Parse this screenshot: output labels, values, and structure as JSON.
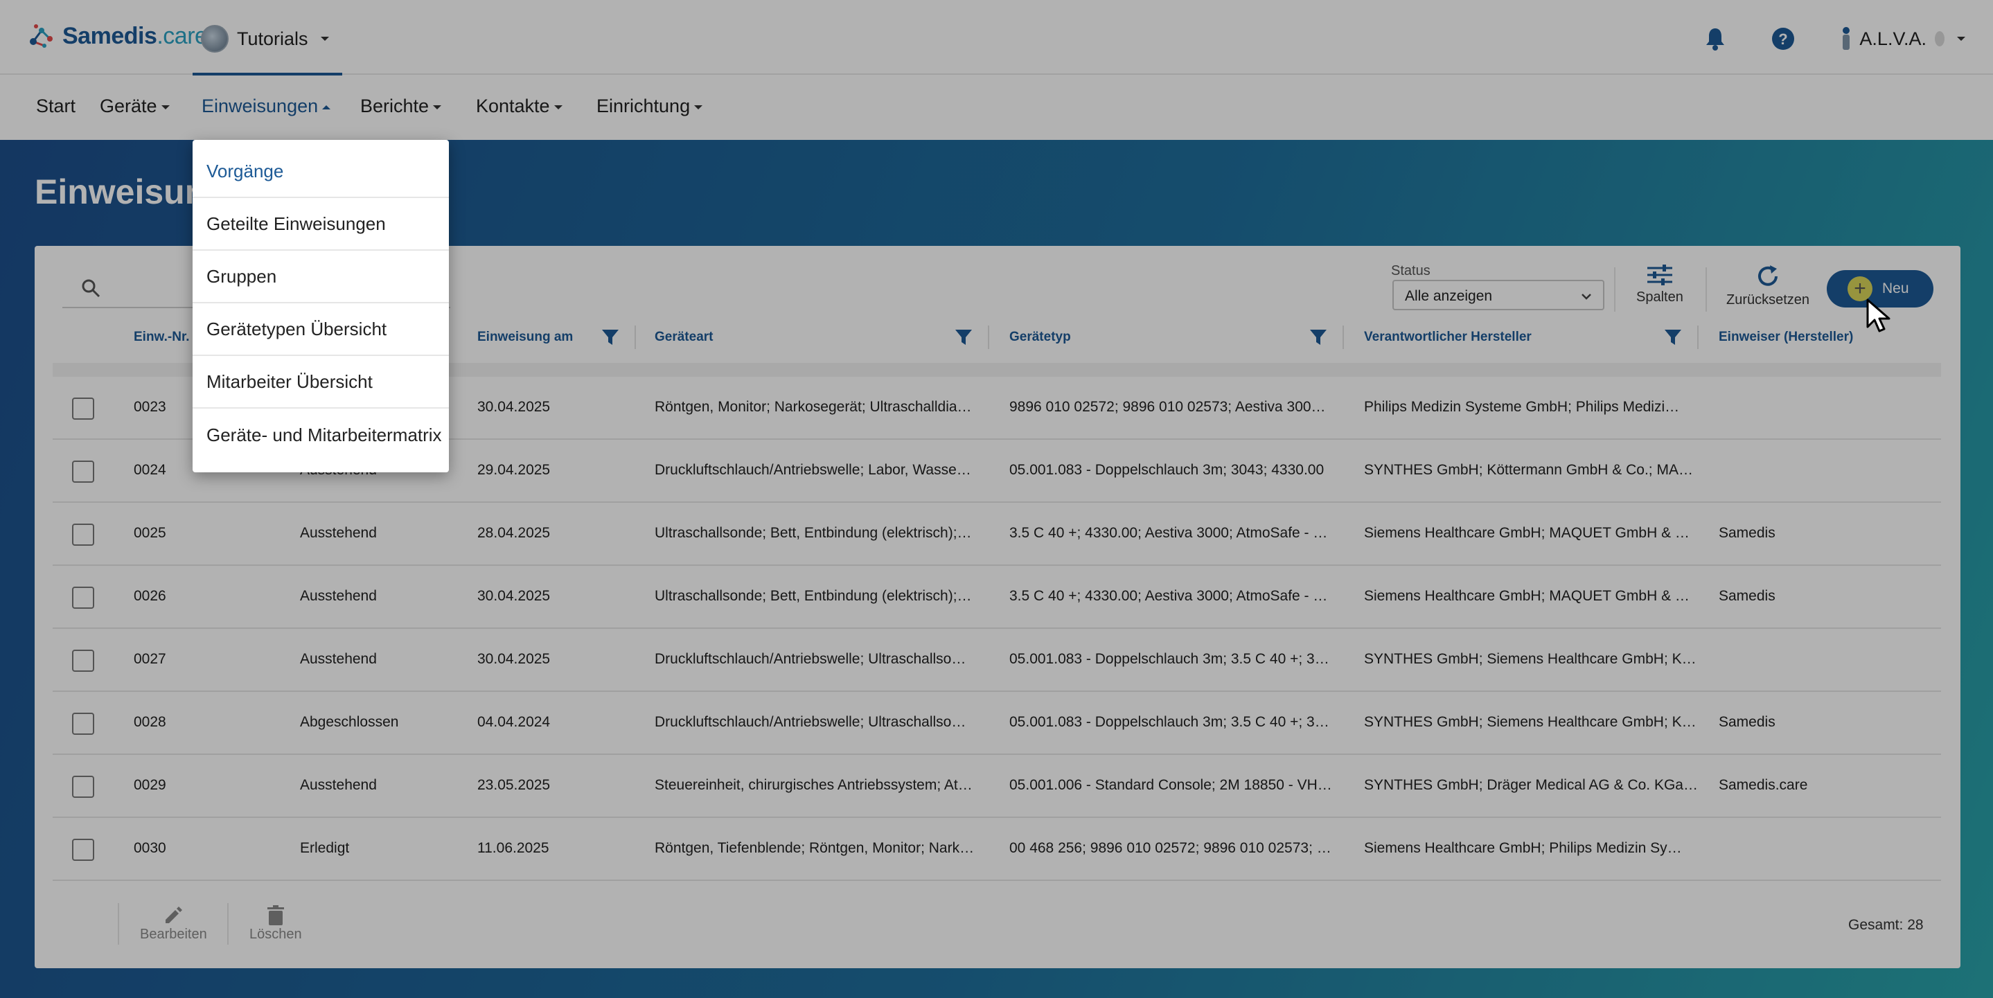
{
  "app": {
    "brand_part1": "Samedis",
    "brand_part2": ".care",
    "workspace": "Tutorials",
    "user": "A.L.V.A."
  },
  "nav": {
    "items": [
      {
        "label": "Start"
      },
      {
        "label": "Geräte"
      },
      {
        "label": "Einweisungen"
      },
      {
        "label": "Berichte"
      },
      {
        "label": "Kontakte"
      },
      {
        "label": "Einrichtung"
      }
    ]
  },
  "page": {
    "title": "Einweisungen"
  },
  "dropdown": {
    "items": [
      {
        "label": "Vorgänge"
      },
      {
        "label": "Geteilte Einweisungen"
      },
      {
        "label": "Gruppen"
      },
      {
        "label": "Gerätetypen Übersicht"
      },
      {
        "label": "Mitarbeiter Übersicht"
      },
      {
        "label": "Geräte- und Mitarbeitermatrix"
      }
    ]
  },
  "toolbar": {
    "status_label": "Status",
    "status_value": "Alle anzeigen",
    "columns_label": "Spalten",
    "reset_label": "Zurücksetzen",
    "new_label": "Neu"
  },
  "table": {
    "headers": {
      "nr": "Einw.-Nr.",
      "datum": "Einweisung am",
      "geraeteart": "Geräteart",
      "geraetetyp": "Gerätetyp",
      "hersteller": "Verantwortlicher Hersteller",
      "einweiser": "Einweiser (Hersteller)"
    },
    "rows": [
      {
        "nr": "0023",
        "status": "",
        "datum": "30.04.2025",
        "geraeteart": "Röntgen, Monitor; Narkosegerät; Ultraschalldia…",
        "geraetetyp": "9896 010 02572; 9896 010 02573; Aestiva 300…",
        "hersteller": "Philips Medizin Systeme GmbH; Philips Medizi…",
        "einweiser": ""
      },
      {
        "nr": "0024",
        "status": "Ausstehend",
        "datum": "29.04.2025",
        "geraeteart": "Druckluftschlauch/Antriebswelle; Labor, Wasse…",
        "geraetetyp": "05.001.083 - Doppelschlauch 3m; 3043; 4330.00",
        "hersteller": "SYNTHES GmbH; Köttermann GmbH & Co.; MA…",
        "einweiser": ""
      },
      {
        "nr": "0025",
        "status": "Ausstehend",
        "datum": "28.04.2025",
        "geraeteart": "Ultraschallsonde; Bett, Entbindung (elektrisch);…",
        "geraetetyp": "3.5 C 40 +; 4330.00; Aestiva 3000; AtmoSafe - …",
        "hersteller": "Siemens Healthcare GmbH; MAQUET GmbH & …",
        "einweiser": "Samedis"
      },
      {
        "nr": "0026",
        "status": "Ausstehend",
        "datum": "30.04.2025",
        "geraeteart": "Ultraschallsonde; Bett, Entbindung (elektrisch);…",
        "geraetetyp": "3.5 C 40 +; 4330.00; Aestiva 3000; AtmoSafe - …",
        "hersteller": "Siemens Healthcare GmbH; MAQUET GmbH & …",
        "einweiser": "Samedis"
      },
      {
        "nr": "0027",
        "status": "Ausstehend",
        "datum": "30.04.2025",
        "geraeteart": "Druckluftschlauch/Antriebswelle; Ultraschallso…",
        "geraetetyp": "05.001.083 - Doppelschlauch 3m; 3.5 C 40 +; 3…",
        "hersteller": "SYNTHES GmbH; Siemens Healthcare GmbH; K…",
        "einweiser": ""
      },
      {
        "nr": "0028",
        "status": "Abgeschlossen",
        "datum": "04.04.2024",
        "geraeteart": "Druckluftschlauch/Antriebswelle; Ultraschallso…",
        "geraetetyp": "05.001.083 - Doppelschlauch 3m; 3.5 C 40 +; 3…",
        "hersteller": "SYNTHES GmbH; Siemens Healthcare GmbH; K…",
        "einweiser": "Samedis"
      },
      {
        "nr": "0029",
        "status": "Ausstehend",
        "datum": "23.05.2025",
        "geraeteart": "Steuereinheit, chirurgisches Antriebssystem; At…",
        "geraetetyp": "05.001.006 - Standard Console; 2M 18850 - VH…",
        "hersteller": "SYNTHES GmbH; Dräger Medical AG & Co. KGa…",
        "einweiser": "Samedis.care"
      },
      {
        "nr": "0030",
        "status": "Erledigt",
        "datum": "11.06.2025",
        "geraeteart": "Röntgen, Tiefenblende; Röntgen, Monitor; Nark…",
        "geraetetyp": "00 468 256; 9896 010 02572; 9896 010 02573; …",
        "hersteller": "Siemens Healthcare GmbH; Philips Medizin Sy…",
        "einweiser": ""
      }
    ]
  },
  "footer": {
    "edit_label": "Bearbeiten",
    "delete_label": "Löschen",
    "total": "Gesamt: 28"
  },
  "colors": {
    "primary": "#1d5a96",
    "accent": "#2ba1c2"
  }
}
